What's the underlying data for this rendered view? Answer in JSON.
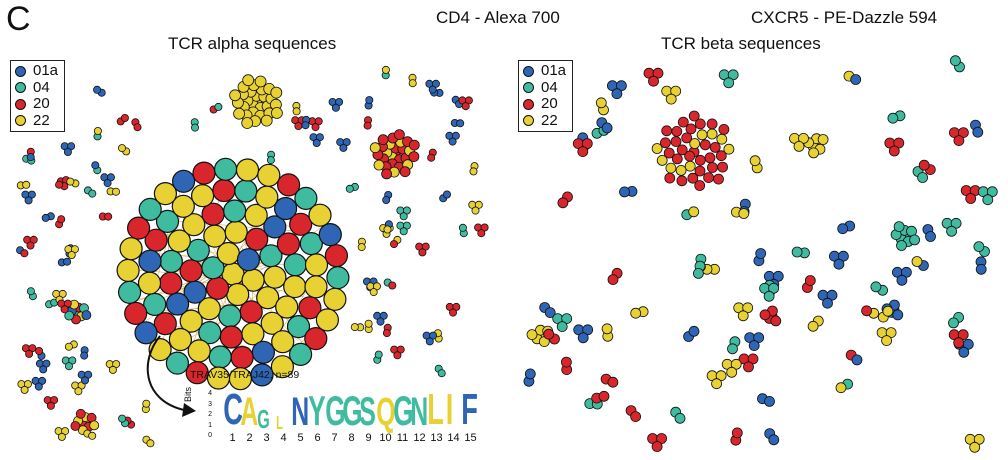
{
  "figure": {
    "panel_letter": "C",
    "headers": [
      "CD4 - Alexa 700",
      "CXCR5 - PE-Dazzle 594"
    ]
  },
  "legend": [
    {
      "label": "01a",
      "color": "#2e66b5"
    },
    {
      "label": "04",
      "color": "#3fbba0"
    },
    {
      "label": "20",
      "color": "#d9262c"
    },
    {
      "label": "22",
      "color": "#e8d233"
    }
  ],
  "alpha_panel": {
    "title": "TCR alpha sequences"
  },
  "beta_panel": {
    "title": "TCR beta sequences"
  },
  "logo": {
    "caption": "TRAV35/TRAJ42, n=89",
    "axis_label": "Bits",
    "ticks": [
      "4",
      "3",
      "2",
      "1",
      "0"
    ],
    "positions": [
      "1",
      "2",
      "3",
      "4",
      "5",
      "6",
      "7",
      "8",
      "9",
      "10",
      "11",
      "12",
      "13",
      "14",
      "15"
    ],
    "letters": [
      {
        "char": "C",
        "color": "#2e66b5",
        "size": 44
      },
      {
        "char": "A",
        "color": "#e8d233",
        "size": 40
      },
      {
        "char": "G",
        "color": "#3fbba0",
        "size": 26
      },
      {
        "char": "L",
        "color": "#e8d233",
        "size": 18
      },
      {
        "char": "N",
        "color": "#2e66b5",
        "size": 40
      },
      {
        "char": "Y",
        "color": "#3fbba0",
        "size": 42
      },
      {
        "char": "G",
        "color": "#3fbba0",
        "size": 42
      },
      {
        "char": "G",
        "color": "#3fbba0",
        "size": 42
      },
      {
        "char": "S",
        "color": "#3fbba0",
        "size": 40
      },
      {
        "char": "Q",
        "color": "#e8d233",
        "size": 40
      },
      {
        "char": "G",
        "color": "#3fbba0",
        "size": 42
      },
      {
        "char": "N",
        "color": "#3fbba0",
        "size": 40
      },
      {
        "char": "L",
        "color": "#e8d233",
        "size": 44
      },
      {
        "char": "I",
        "color": "#e8d233",
        "size": 44
      },
      {
        "char": "F",
        "color": "#2e66b5",
        "size": 44
      }
    ]
  }
}
